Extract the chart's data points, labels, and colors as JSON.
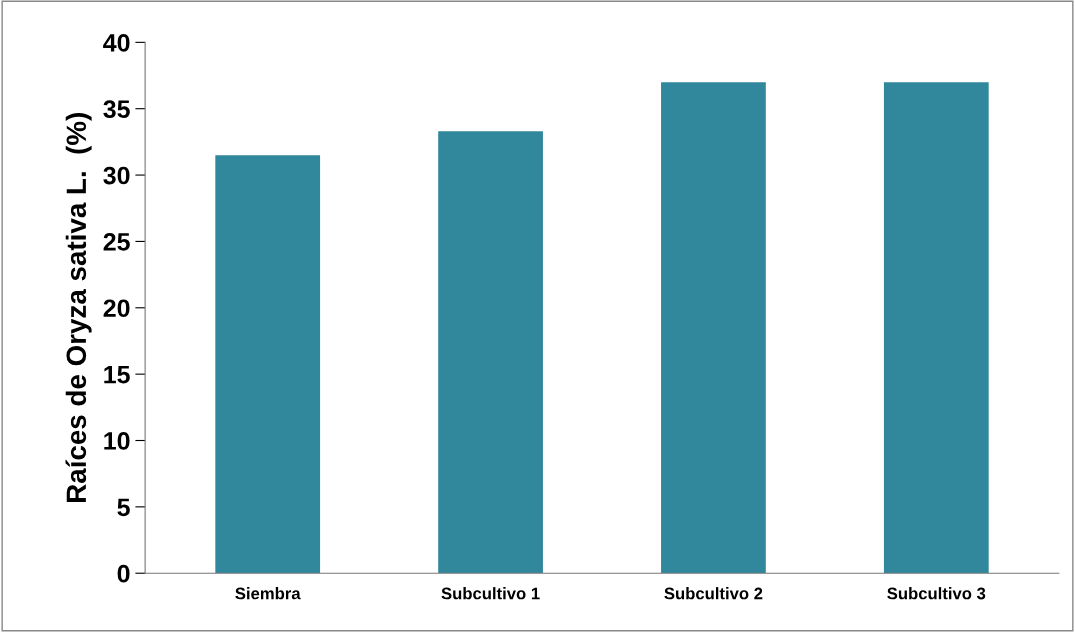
{
  "chart_data": {
    "type": "bar",
    "ylabel": "Raíces de Oryza sativa L.  (%)",
    "categories": [
      "Siembra",
      "Subcultivo 1",
      "Subcultivo 2",
      "Subcultivo 3"
    ],
    "values": [
      31.5,
      33.3,
      37,
      37
    ],
    "color": "#31879c",
    "ylim": [
      0,
      40
    ],
    "yticks": [
      0,
      5,
      10,
      15,
      20,
      25,
      30,
      35,
      40
    ],
    "grid": false
  }
}
